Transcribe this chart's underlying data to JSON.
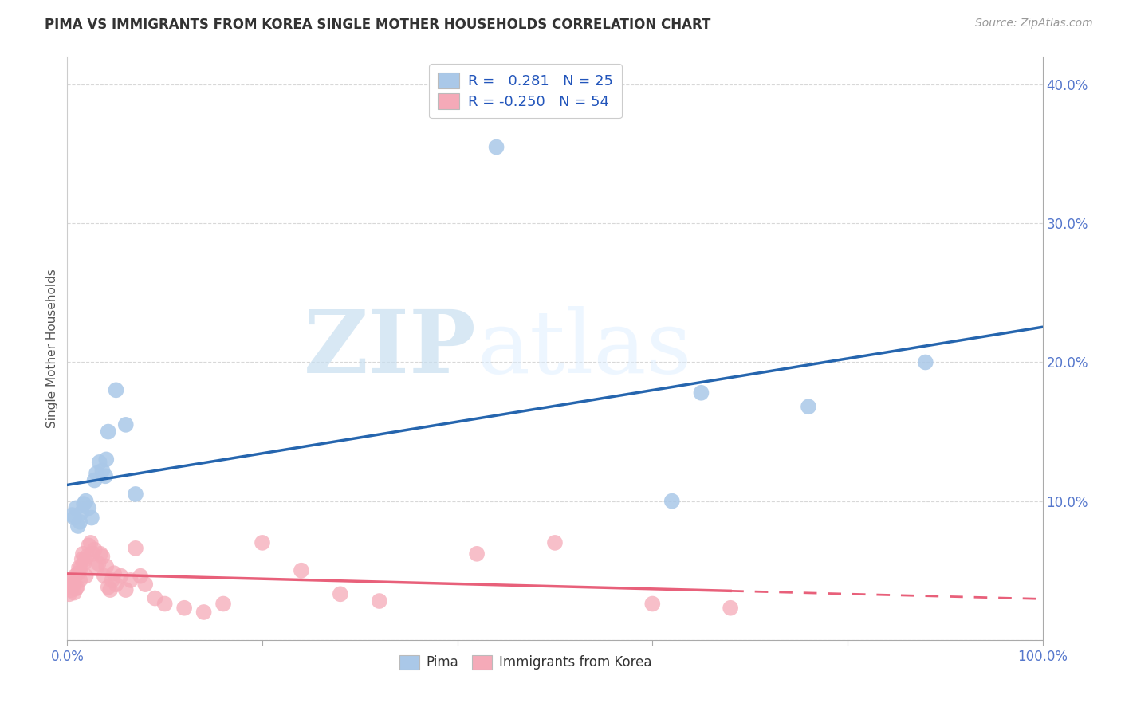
{
  "title": "PIMA VS IMMIGRANTS FROM KOREA SINGLE MOTHER HOUSEHOLDS CORRELATION CHART",
  "source": "Source: ZipAtlas.com",
  "ylabel": "Single Mother Households",
  "xlim": [
    0.0,
    1.0
  ],
  "ylim": [
    0.0,
    0.42
  ],
  "xticks": [
    0.0,
    0.2,
    0.4,
    0.6,
    0.8,
    1.0
  ],
  "xticklabels_edge": [
    "0.0%",
    "",
    "",
    "",
    "",
    "100.0%"
  ],
  "yticks": [
    0.0,
    0.1,
    0.2,
    0.3,
    0.4
  ],
  "yticklabels": [
    "",
    "10.0%",
    "20.0%",
    "30.0%",
    "40.0%"
  ],
  "pima_color": "#aac8e8",
  "pima_edge_color": "#aac8e8",
  "pima_line_color": "#2565ae",
  "korea_color": "#f5aab8",
  "korea_edge_color": "#f5aab8",
  "korea_line_color": "#e8607a",
  "watermark_zip": "ZIP",
  "watermark_atlas": "atlas",
  "background_color": "#ffffff",
  "grid_color": "#d8d8d8",
  "tick_color": "#5577cc",
  "pima_x": [
    0.005,
    0.007,
    0.009,
    0.011,
    0.013,
    0.015,
    0.017,
    0.019,
    0.022,
    0.025,
    0.028,
    0.03,
    0.033,
    0.036,
    0.039,
    0.042,
    0.05,
    0.06,
    0.07,
    0.04,
    0.44,
    0.62,
    0.65,
    0.76,
    0.88
  ],
  "pima_y": [
    0.09,
    0.088,
    0.095,
    0.082,
    0.085,
    0.092,
    0.098,
    0.1,
    0.095,
    0.088,
    0.115,
    0.12,
    0.128,
    0.122,
    0.118,
    0.15,
    0.18,
    0.155,
    0.105,
    0.13,
    0.355,
    0.1,
    0.178,
    0.168,
    0.2
  ],
  "korea_x": [
    0.001,
    0.002,
    0.003,
    0.004,
    0.005,
    0.006,
    0.007,
    0.008,
    0.009,
    0.01,
    0.011,
    0.012,
    0.013,
    0.014,
    0.015,
    0.016,
    0.017,
    0.018,
    0.019,
    0.02,
    0.022,
    0.024,
    0.026,
    0.028,
    0.03,
    0.032,
    0.034,
    0.036,
    0.038,
    0.04,
    0.042,
    0.044,
    0.046,
    0.048,
    0.05,
    0.055,
    0.06,
    0.065,
    0.07,
    0.075,
    0.08,
    0.09,
    0.1,
    0.12,
    0.14,
    0.16,
    0.2,
    0.24,
    0.28,
    0.32,
    0.42,
    0.5,
    0.6,
    0.68
  ],
  "korea_y": [
    0.038,
    0.033,
    0.042,
    0.036,
    0.04,
    0.04,
    0.034,
    0.046,
    0.037,
    0.038,
    0.048,
    0.052,
    0.043,
    0.052,
    0.058,
    0.062,
    0.055,
    0.058,
    0.046,
    0.06,
    0.068,
    0.07,
    0.062,
    0.065,
    0.052,
    0.055,
    0.062,
    0.06,
    0.046,
    0.053,
    0.038,
    0.036,
    0.043,
    0.048,
    0.04,
    0.046,
    0.036,
    0.043,
    0.066,
    0.046,
    0.04,
    0.03,
    0.026,
    0.023,
    0.02,
    0.026,
    0.07,
    0.05,
    0.033,
    0.028,
    0.062,
    0.07,
    0.026,
    0.023
  ],
  "legend1_label": "R =   0.281   N = 25",
  "legend2_label": "R = -0.250   N = 54",
  "legend_label_pima": "Pima",
  "legend_label_korea": "Immigrants from Korea"
}
